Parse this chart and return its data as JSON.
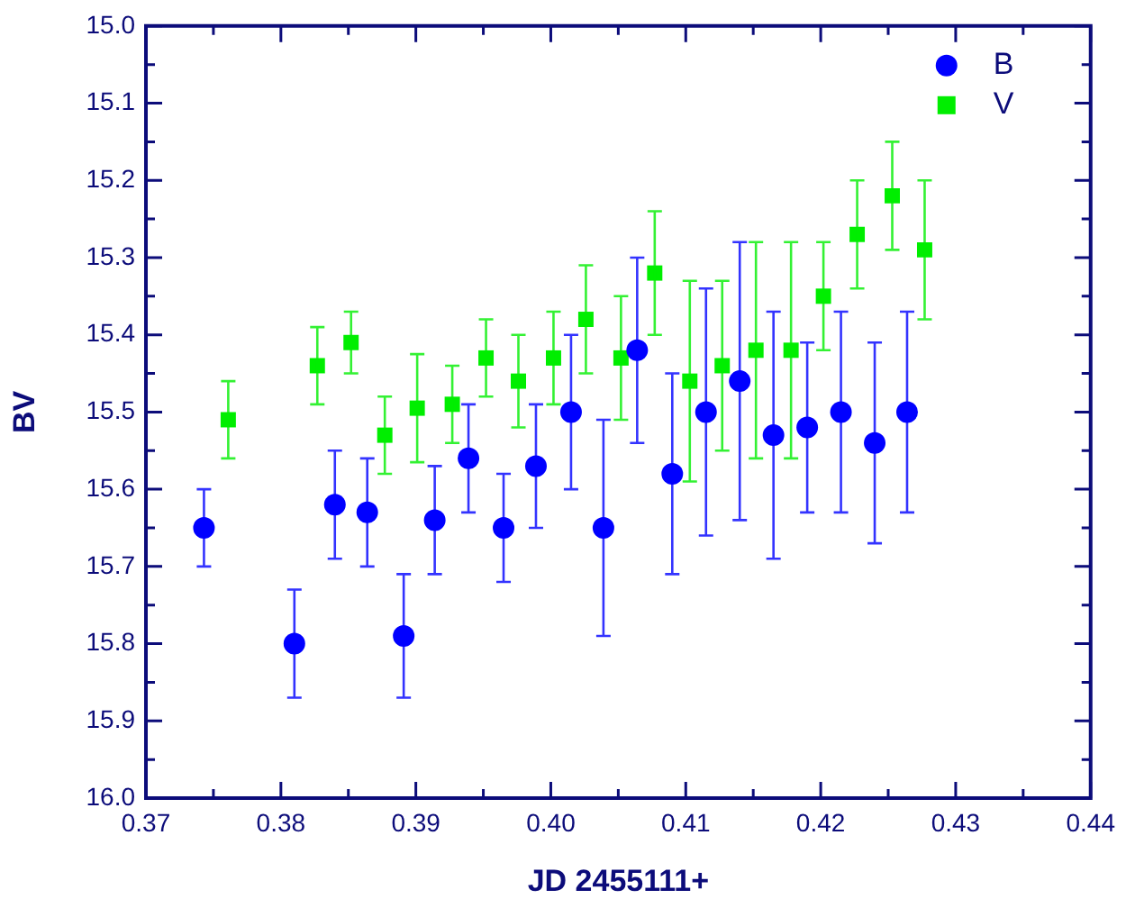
{
  "chart_data": {
    "type": "scatter",
    "xlabel": "JD 2455111+",
    "ylabel": "BV",
    "xlim": [
      0.37,
      0.44
    ],
    "xticks": [
      0.37,
      {
        "value": 0.375,
        "label": null
      },
      0.38,
      {
        "value": 0.385,
        "label": null
      },
      0.39,
      {
        "value": 0.395,
        "label": null
      },
      {
        "value": 0.4,
        "label": "0.40"
      },
      {
        "value": 0.405,
        "label": null
      },
      0.41,
      {
        "value": 0.415,
        "label": null
      },
      0.42,
      {
        "value": 0.425,
        "label": null
      },
      0.43,
      {
        "value": 0.435,
        "label": null
      },
      0.44
    ],
    "ylim": [
      16.0,
      15.0
    ],
    "yticks": [
      {
        "value": 15,
        "label": "15.0"
      },
      {
        "value": 15.05,
        "label": null
      },
      15.1,
      {
        "value": 15.15,
        "label": null
      },
      15.2,
      {
        "value": 15.25,
        "label": null
      },
      15.3,
      {
        "value": 15.35,
        "label": null
      },
      15.4,
      {
        "value": 15.45,
        "label": null
      },
      15.5,
      {
        "value": 15.55,
        "label": null
      },
      15.6,
      {
        "value": 15.65,
        "label": null
      },
      15.7,
      {
        "value": 15.75,
        "label": null
      },
      15.8,
      {
        "value": 15.85,
        "label": null
      },
      15.9,
      {
        "value": 15.95,
        "label": null
      },
      {
        "value": 16,
        "label": "16.0"
      }
    ],
    "grid": false,
    "legend": "top right",
    "series": [
      {
        "name": "B",
        "color": "#0000ff",
        "marker": "circle",
        "x": [
          0.3743,
          0.381,
          0.384,
          0.3864,
          0.3891,
          0.3914,
          0.3939,
          0.3965,
          0.3989,
          0.4015,
          0.4039,
          0.4064,
          0.409,
          0.4115,
          0.414,
          0.4165,
          0.419,
          0.4215,
          0.424,
          0.4264
        ],
        "values": [
          15.65,
          15.8,
          15.62,
          15.63,
          15.79,
          15.64,
          15.56,
          15.65,
          15.57,
          15.5,
          15.65,
          15.42,
          15.58,
          15.5,
          15.46,
          15.53,
          15.52,
          15.5,
          15.54,
          15.5
        ],
        "errors": [
          0.05,
          0.07,
          0.07,
          0.07,
          0.08,
          0.07,
          0.07,
          0.07,
          0.08,
          0.1,
          0.14,
          0.12,
          0.13,
          0.16,
          0.18,
          0.16,
          0.11,
          0.13,
          0.13,
          0.13
        ]
      },
      {
        "name": "V",
        "color": "#00ee00",
        "marker": "square",
        "x": [
          0.3761,
          0.3827,
          0.3852,
          0.3877,
          0.3901,
          0.3927,
          0.3952,
          0.3976,
          0.4002,
          0.4026,
          0.4052,
          0.4077,
          0.4103,
          0.4127,
          0.4152,
          0.4178,
          0.4202,
          0.4227,
          0.4253,
          0.4277
        ],
        "values": [
          15.51,
          15.44,
          15.41,
          15.53,
          15.495,
          15.49,
          15.43,
          15.46,
          15.43,
          15.38,
          15.43,
          15.32,
          15.46,
          15.44,
          15.42,
          15.42,
          15.35,
          15.27,
          15.22,
          15.29
        ],
        "errors": [
          0.05,
          0.05,
          0.04,
          0.05,
          0.07,
          0.05,
          0.05,
          0.06,
          0.06,
          0.07,
          0.08,
          0.08,
          0.13,
          0.11,
          0.14,
          0.14,
          0.07,
          0.07,
          0.07,
          0.09
        ]
      }
    ]
  }
}
